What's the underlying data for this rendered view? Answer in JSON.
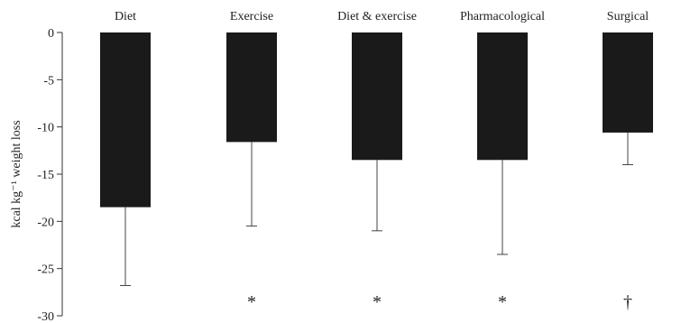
{
  "chart_data": {
    "type": "bar",
    "categories": [
      "Diet",
      "Exercise",
      "Diet & exercise",
      "Pharmacological",
      "Surgical"
    ],
    "values": [
      -18.5,
      -11.6,
      -13.5,
      -13.5,
      -10.6
    ],
    "error_lower": [
      -26.8,
      -20.5,
      -21.0,
      -23.5,
      -14.0
    ],
    "markers": [
      "",
      "*",
      "*",
      "*",
      "†"
    ],
    "ylabel": "kcal kg⁻¹ weight loss",
    "ylim": [
      -30,
      0
    ],
    "yticks": [
      "0",
      "-5",
      "-10",
      "-15",
      "-20",
      "-25",
      "-30"
    ],
    "ytick_values": [
      0,
      -5,
      -10,
      -15,
      -20,
      -25,
      -30
    ],
    "bar_color": "#1a1a1a",
    "axis_color": "#333333",
    "grid": false,
    "legend": "none"
  }
}
